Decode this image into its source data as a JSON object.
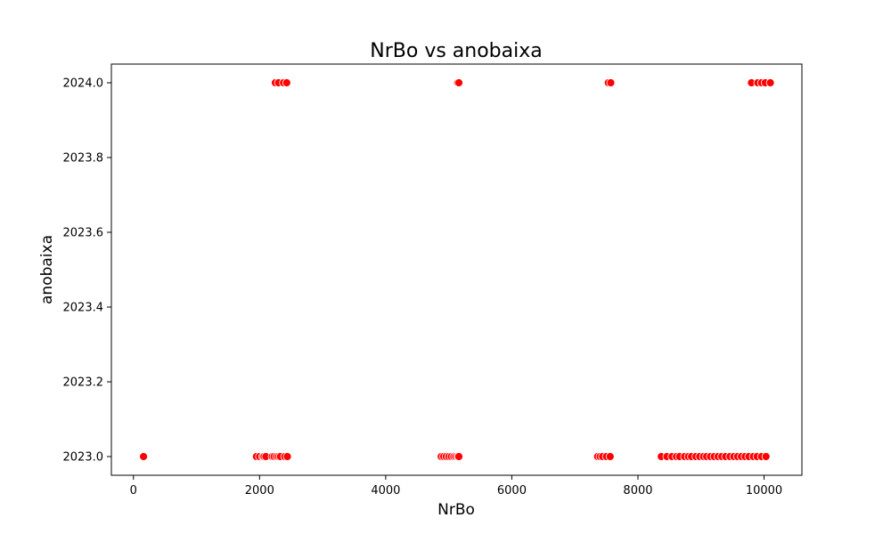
{
  "chart_data": {
    "type": "scatter",
    "title": "NrBo vs anobaixa",
    "xlabel": "NrBo",
    "ylabel": "anobaixa",
    "xlim": [
      -350,
      10600
    ],
    "ylim": [
      2022.95,
      2024.05
    ],
    "xticks": [
      0,
      2000,
      4000,
      6000,
      8000,
      10000
    ],
    "yticks": [
      2023.0,
      2023.2,
      2023.4,
      2023.6,
      2023.8,
      2024.0
    ],
    "ytick_labels": [
      "2023.0",
      "2023.2",
      "2023.4",
      "2023.6",
      "2023.8",
      "2024.0"
    ],
    "grid": false,
    "marker_color": "#ff0000",
    "marker_edge_color": "#ffffff",
    "series": [
      {
        "name": "anobaixa",
        "points": [
          {
            "x": 2250,
            "y": 2024
          },
          {
            "x": 2300,
            "y": 2024
          },
          {
            "x": 2380,
            "y": 2024
          },
          {
            "x": 2430,
            "y": 2024
          },
          {
            "x": 5140,
            "y": 2024
          },
          {
            "x": 5160,
            "y": 2024
          },
          {
            "x": 7530,
            "y": 2024
          },
          {
            "x": 7570,
            "y": 2024
          },
          {
            "x": 9800,
            "y": 2024
          },
          {
            "x": 9900,
            "y": 2024
          },
          {
            "x": 9960,
            "y": 2024
          },
          {
            "x": 10020,
            "y": 2024
          },
          {
            "x": 10100,
            "y": 2024
          },
          {
            "x": 160,
            "y": 2023
          },
          {
            "x": 1950,
            "y": 2023
          },
          {
            "x": 2000,
            "y": 2023
          },
          {
            "x": 2050,
            "y": 2023
          },
          {
            "x": 2070,
            "y": 2023
          },
          {
            "x": 2100,
            "y": 2023
          },
          {
            "x": 2200,
            "y": 2023
          },
          {
            "x": 2230,
            "y": 2023
          },
          {
            "x": 2270,
            "y": 2023
          },
          {
            "x": 2300,
            "y": 2023
          },
          {
            "x": 2330,
            "y": 2023
          },
          {
            "x": 2400,
            "y": 2023
          },
          {
            "x": 2440,
            "y": 2023
          },
          {
            "x": 4880,
            "y": 2023
          },
          {
            "x": 4920,
            "y": 2023
          },
          {
            "x": 4960,
            "y": 2023
          },
          {
            "x": 5000,
            "y": 2023
          },
          {
            "x": 5040,
            "y": 2023
          },
          {
            "x": 5080,
            "y": 2023
          },
          {
            "x": 5110,
            "y": 2023
          },
          {
            "x": 5140,
            "y": 2023
          },
          {
            "x": 5160,
            "y": 2023
          },
          {
            "x": 7360,
            "y": 2023
          },
          {
            "x": 7400,
            "y": 2023
          },
          {
            "x": 7440,
            "y": 2023
          },
          {
            "x": 7500,
            "y": 2023
          },
          {
            "x": 7560,
            "y": 2023
          },
          {
            "x": 8370,
            "y": 2023
          },
          {
            "x": 8460,
            "y": 2023
          },
          {
            "x": 8540,
            "y": 2023
          },
          {
            "x": 8610,
            "y": 2023
          },
          {
            "x": 8660,
            "y": 2023
          },
          {
            "x": 8740,
            "y": 2023
          },
          {
            "x": 8800,
            "y": 2023
          },
          {
            "x": 8850,
            "y": 2023
          },
          {
            "x": 8920,
            "y": 2023
          },
          {
            "x": 8980,
            "y": 2023
          },
          {
            "x": 9040,
            "y": 2023
          },
          {
            "x": 9090,
            "y": 2023
          },
          {
            "x": 9150,
            "y": 2023
          },
          {
            "x": 9210,
            "y": 2023
          },
          {
            "x": 9270,
            "y": 2023
          },
          {
            "x": 9330,
            "y": 2023
          },
          {
            "x": 9390,
            "y": 2023
          },
          {
            "x": 9460,
            "y": 2023
          },
          {
            "x": 9520,
            "y": 2023
          },
          {
            "x": 9580,
            "y": 2023
          },
          {
            "x": 9640,
            "y": 2023
          },
          {
            "x": 9700,
            "y": 2023
          },
          {
            "x": 9760,
            "y": 2023
          },
          {
            "x": 9830,
            "y": 2023
          },
          {
            "x": 9890,
            "y": 2023
          },
          {
            "x": 9960,
            "y": 2023
          },
          {
            "x": 10030,
            "y": 2023
          }
        ]
      }
    ]
  }
}
